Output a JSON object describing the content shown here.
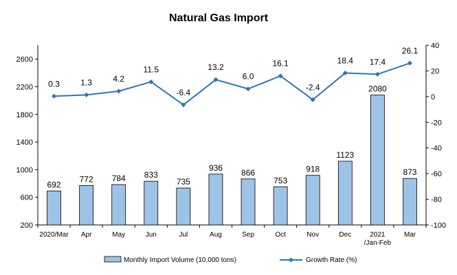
{
  "chart_data": {
    "type": "bar+line",
    "title": "Natural Gas Import",
    "categories": [
      [
        "2020/Mar"
      ],
      [
        "Apr"
      ],
      [
        "May"
      ],
      [
        "Jun"
      ],
      [
        "Jul"
      ],
      [
        "Aug"
      ],
      [
        "Sep"
      ],
      [
        "Oct"
      ],
      [
        "Nov"
      ],
      [
        "Dec"
      ],
      [
        "2021",
        "/Jan-Feb"
      ],
      [
        "Mar"
      ]
    ],
    "series": [
      {
        "name": "Monthly Import Volume (10,000 tons)",
        "type": "bar",
        "axis": "left",
        "color": "#9dc3e6",
        "values": [
          692,
          772,
          784,
          833,
          735,
          936,
          866,
          753,
          918,
          1123,
          2080,
          873
        ],
        "labels": [
          "692",
          "772",
          "784",
          "833",
          "735",
          "936",
          "866",
          "753",
          "918",
          "1123",
          "2080",
          "873"
        ]
      },
      {
        "name": "Growth Rate (%)",
        "type": "line",
        "axis": "right",
        "color": "#2e75b6",
        "values": [
          0.3,
          1.3,
          4.2,
          11.5,
          -6.4,
          13.2,
          6.0,
          16.1,
          -2.4,
          18.4,
          17.4,
          26.1
        ],
        "labels": [
          "0.3",
          "1.3",
          "4.2",
          "11.5",
          "-6.4",
          "13.2",
          "6.0",
          "16.1",
          "-2.4",
          "18.4",
          "17.4",
          "26.1"
        ]
      }
    ],
    "y_left": {
      "min": 200,
      "max": 2800,
      "ticks": [
        "200",
        "600",
        "1000",
        "1400",
        "1800",
        "2200",
        "2600"
      ]
    },
    "y_right": {
      "min": -100,
      "max": 40,
      "ticks": [
        "-100",
        "-80",
        "-60",
        "-40",
        "-20",
        "0",
        "20",
        "40"
      ]
    },
    "legend_position": "bottom",
    "grid": false
  }
}
